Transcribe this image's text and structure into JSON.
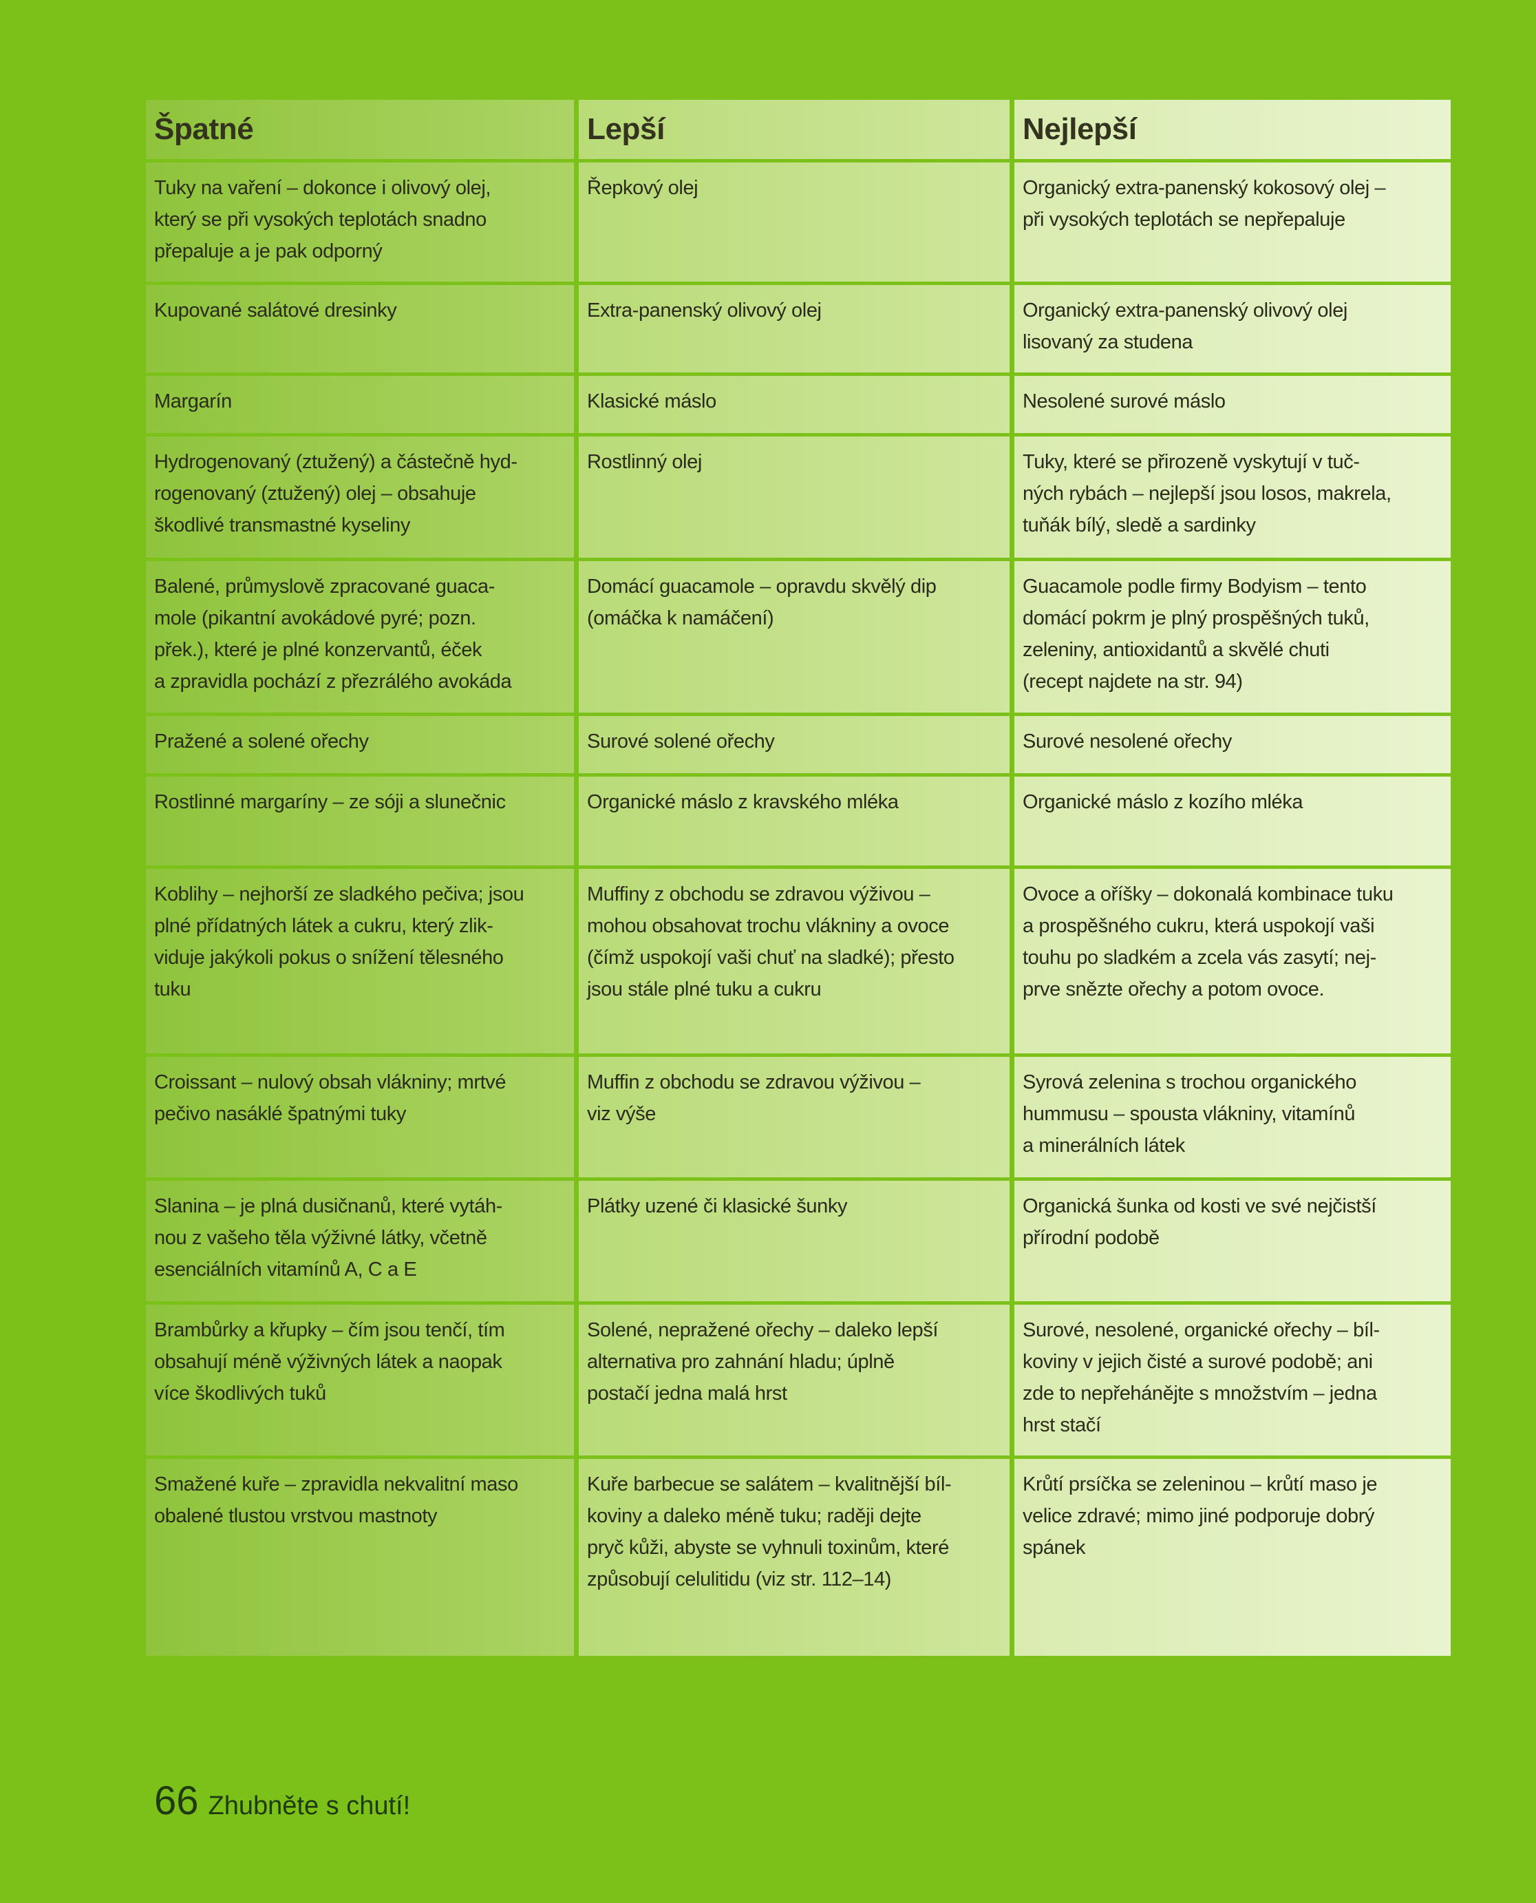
{
  "table": {
    "headers": [
      "Špatné",
      "Lepší",
      "Nejlepší"
    ],
    "rows": [
      [
        "Tuky na vaření – dokonce i olivový olej,\nkterý se při vysokých teplotách snadno\npřepaluje a je pak odporný",
        "Řepkový olej",
        "Organický extra-panenský kokosový olej –\npři vysokých teplotách se nepřepaluje"
      ],
      [
        "Kupované salátové dresinky",
        "Extra-panenský olivový olej",
        "Organický extra-panenský olivový olej\nlisovaný za studena"
      ],
      [
        "Margarín",
        "Klasické máslo",
        "Nesolené surové máslo"
      ],
      [
        "Hydrogenovaný (ztužený) a částečně hyd-\nrogenovaný (ztužený) olej – obsahuje\nškodlivé transmastné kyseliny",
        "Rostlinný olej",
        "Tuky, které se přirozeně vyskytují v tuč-\nných rybách – nejlepší jsou losos, makrela,\ntuňák bílý, sledě a sardinky"
      ],
      [
        "Balené, průmyslově zpracované guaca-\nmole (pikantní avokádové pyré; pozn.\npřek.), které je plné konzervantů, éček\na zpravidla pochází z přezrálého avokáda",
        "Domácí guacamole – opravdu skvělý dip\n(omáčka k namáčení)",
        "Guacamole podle firmy Bodyism – tento\ndomácí pokrm je plný prospěšných tuků,\nzeleniny, antioxidantů a skvělé chuti\n(recept najdete na str. 94)"
      ],
      [
        "Pražené a solené ořechy",
        "Surové solené ořechy",
        "Surové nesolené ořechy"
      ],
      [
        "Rostlinné margaríny – ze sóji a slunečnic",
        "Organické máslo z kravského mléka",
        "Organické máslo z kozího mléka"
      ],
      [
        "Koblihy – nejhorší ze sladkého pečiva; jsou\nplné přídatných látek a cukru, který zlik-\nviduje jakýkoli pokus o snížení tělesného\ntuku",
        "Muffiny z obchodu se zdravou výživou –\nmohou obsahovat trochu vlákniny a ovoce\n(čímž uspokojí vaši chuť na sladké); přesto\njsou stále plné tuku a cukru",
        "Ovoce a oříšky – dokonalá kombinace tuku\na prospěšného cukru, která uspokojí vaši\ntouhu po sladkém a zcela vás zasytí; nej-\nprve snězte ořechy a potom ovoce."
      ],
      [
        "Croissant – nulový obsah vlákniny; mrtvé\npečivo nasáklé špatnými tuky",
        "Muffin z obchodu se zdravou výživou –\nviz výše",
        "Syrová zelenina s trochou organického\nhummusu – spousta vlákniny, vitamínů\na minerálních látek"
      ],
      [
        "Slanina – je plná dusičnanů, které vytáh-\nnou z vašeho těla výživné látky, včetně\nesenciálních vitamínů A, C a E",
        "Plátky uzené či klasické šunky",
        "Organická šunka od kosti ve své nejčistší\npřírodní podobě"
      ],
      [
        "Brambůrky a křupky – čím jsou tenčí, tím\nobsahují méně výživných látek a naopak\nvíce škodlivých tuků",
        "Solené, nepražené ořechy – daleko lepší\nalternativa pro zahnání hladu; úplně\npostačí jedna malá hrst",
        "Surové, nesolené, organické ořechy – bíl-\nkoviny v jejich čisté a surové podobě; ani\nzde to nepřehánějte s množstvím – jedna\nhrst stačí"
      ],
      [
        "Smažené kuře – zpravidla nekvalitní maso\nobalené tlustou vrstvou mastnoty",
        "Kuře barbecue se salátem – kvalitnější bíl-\nkoviny a daleko méně tuku; raději dejte\npryč kůži, abyste se vyhnuli toxinům, které\nzpůsobují celulitidu (viz str. 112–14)",
        "Krůtí prsíčka se zeleninou – krůtí maso je\nvelice zdravé; mimo jiné podporuje dobrý\nspánek"
      ]
    ]
  },
  "footer": {
    "page_number": "66",
    "book_title": "Zhubněte s chutí!"
  },
  "colors": {
    "page": "#7cc11a",
    "column_bad": "#9ccc4f",
    "column_better": "#c5e18a",
    "column_best": "#e2f0c0",
    "text": "#2b2b1c"
  }
}
